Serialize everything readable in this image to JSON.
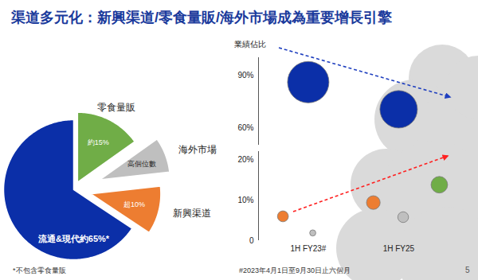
{
  "title": "渠道多元化：新興渠道/零食量販/海外市場成為重要增長引擎",
  "page_number": "5",
  "chart_data": [
    {
      "type": "pie",
      "categories": [
        "零食量販",
        "海外市場",
        "新興渠道",
        "流通&現代約65%*"
      ],
      "values": [
        15,
        8,
        11,
        65
      ],
      "value_labels": [
        "約15%",
        "高個位數",
        "超10%",
        null
      ],
      "colors": [
        "#70ad47",
        "#bfbfbf",
        "#ed7d31",
        "#0b2fa8"
      ],
      "data_labels": true,
      "footnote": "*不包含零食量販"
    },
    {
      "type": "scatter",
      "ylabel": "業績佔比",
      "categories": [
        "1H FY23#",
        "1H FY25"
      ],
      "tick_labels": "y",
      "ylim": [
        50,
        100
      ],
      "yticks": [
        {
          "value": 60,
          "label": "60%"
        },
        {
          "value": 90,
          "label": "90%"
        }
      ],
      "series": [
        {
          "color": "#0b2fa8",
          "values": [
            86,
            70.5
          ]
        }
      ]
    },
    {
      "type": "scatter",
      "categories": [
        "1H FY23#",
        "1H FY25"
      ],
      "ylim": [
        0,
        22
      ],
      "yticks": [
        0,
        {
          "value": 10,
          "label": "10%"
        },
        {
          "value": 20,
          "label": "20%"
        }
      ],
      "series": [
        {
          "color": "#ed7d31",
          "values": [
            6,
            9.4
          ]
        },
        {
          "color": "#bfbfbf",
          "values": [
            1.9,
            5.8
          ]
        },
        {
          "color": "#70ad47",
          "values": [
            null,
            13.8
          ]
        }
      ],
      "footnote": "#2023年4月1日至9月30日止六個月"
    }
  ]
}
